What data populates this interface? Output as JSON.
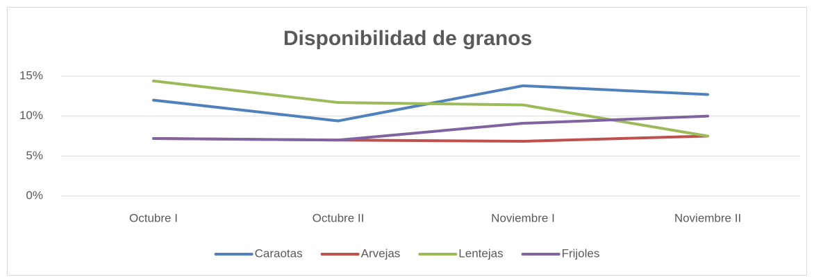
{
  "chart_data": {
    "type": "line",
    "title": "Disponibilidad de granos",
    "categories": [
      "Octubre I",
      "Octubre II",
      "Noviembre I",
      "Noviembre II"
    ],
    "series": [
      {
        "name": "Caraotas",
        "color": "#4f81bd",
        "values": [
          12.0,
          9.4,
          13.8,
          12.7
        ]
      },
      {
        "name": "Arvejas",
        "color": "#c0504d",
        "values": [
          7.2,
          7.0,
          6.85,
          7.5
        ]
      },
      {
        "name": "Lentejas",
        "color": "#9bbb59",
        "values": [
          14.4,
          11.7,
          11.4,
          7.5
        ]
      },
      {
        "name": "Frijoles",
        "color": "#8064a2",
        "values": [
          7.2,
          7.0,
          9.1,
          10.0
        ]
      }
    ],
    "ylim": [
      0,
      15
    ],
    "yticks": [
      {
        "value": 0,
        "label": "0%"
      },
      {
        "value": 5,
        "label": "5%"
      },
      {
        "value": 10,
        "label": "10%"
      },
      {
        "value": 15,
        "label": "15%"
      }
    ],
    "grid": true,
    "legend": "bottom"
  }
}
